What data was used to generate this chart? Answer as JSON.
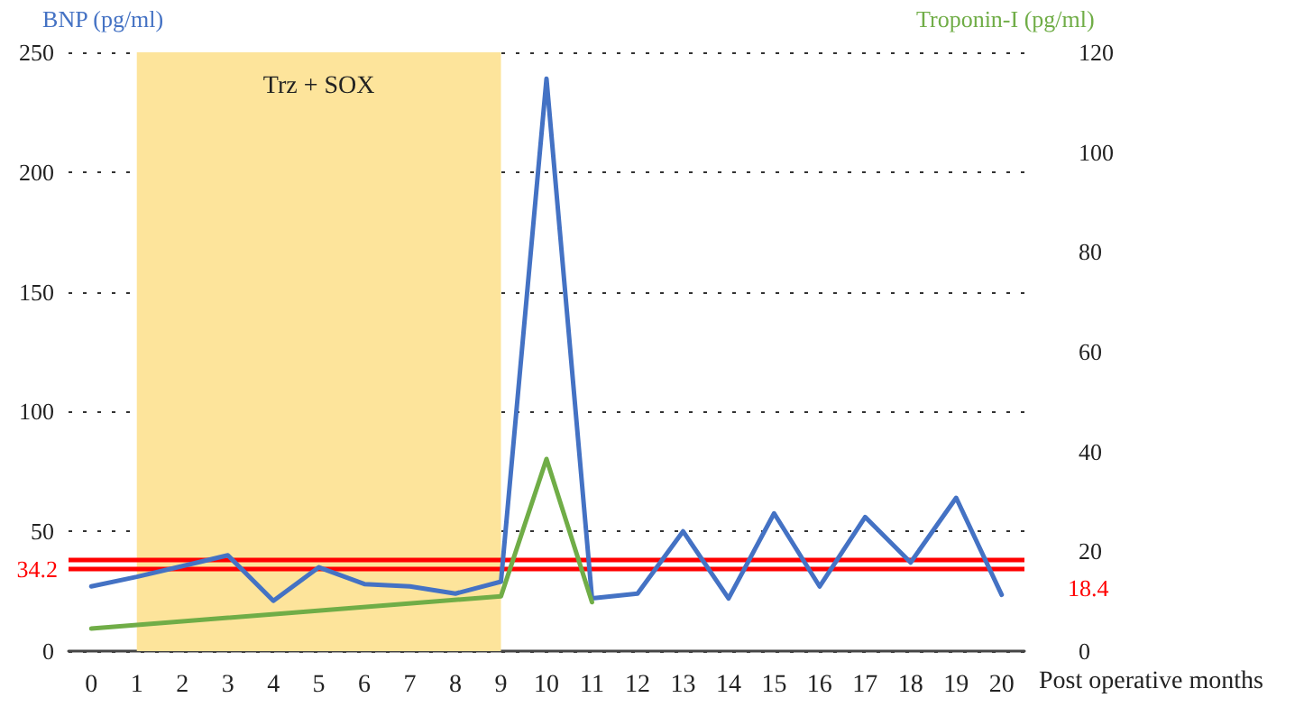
{
  "chart_data": {
    "type": "line",
    "ylabel": "BNP (pg/ml)",
    "y2label": "Troponin-I (pg/ml)",
    "xlabel": "Post operative months",
    "x": [
      0,
      1,
      2,
      3,
      4,
      5,
      6,
      7,
      8,
      9,
      10,
      11,
      12,
      13,
      14,
      15,
      16,
      17,
      18,
      19,
      20
    ],
    "series": [
      {
        "color": "#4472c4",
        "values": [
          27,
          31,
          35.5,
          40,
          21,
          35,
          28,
          27,
          24,
          29,
          239,
          22,
          24,
          50,
          22,
          57.5,
          27,
          56,
          37,
          64,
          23.5
        ]
      },
      {
        "color": "#70ad47",
        "axis": "y2",
        "x": [
          0,
          9,
          10,
          11
        ],
        "values": [
          4.5,
          11,
          38.5,
          9.8
        ]
      }
    ],
    "xlim": [
      -0.5,
      20.5
    ],
    "xticks": [
      0,
      1,
      2,
      3,
      4,
      5,
      6,
      7,
      8,
      9,
      10,
      11,
      12,
      13,
      14,
      15,
      16,
      17,
      18,
      19,
      20
    ],
    "ylim": [
      0,
      250
    ],
    "yticks": [
      0,
      50,
      100,
      150,
      200,
      250
    ],
    "y2lim": [
      0,
      120
    ],
    "y2ticks": [
      0,
      20,
      40,
      60,
      80,
      100,
      120
    ],
    "ref_lines": [
      {
        "axis": "y",
        "value": 34.2,
        "label": "34.2",
        "color": "#ff0000"
      },
      {
        "axis": "y2",
        "value": 18.4,
        "label": "18.4",
        "color": "#ff0000"
      }
    ],
    "bands": [
      {
        "axis": "x",
        "from": 1,
        "to": 9,
        "label": "Trz + SOX",
        "color": "#fde49b"
      }
    ],
    "grid": "y",
    "marker": "none",
    "line_style": "solid"
  }
}
